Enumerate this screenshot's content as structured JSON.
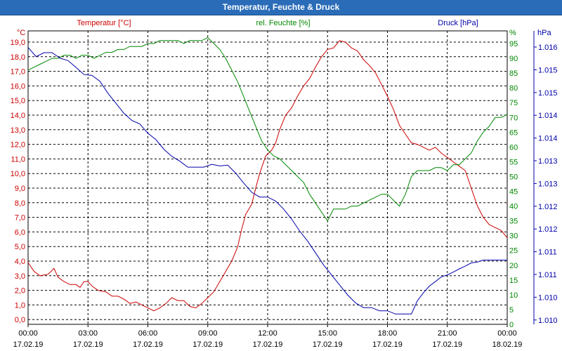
{
  "chart_data": {
    "type": "line",
    "title": "Temperatur, Feuchte & Druck",
    "x_ticks": [
      {
        "time": "00:00",
        "date": "17.02.19"
      },
      {
        "time": "03:00",
        "date": "17.02.19"
      },
      {
        "time": "06:00",
        "date": "17.02.19"
      },
      {
        "time": "09:00",
        "date": "17.02.19"
      },
      {
        "time": "12:00",
        "date": "17.02.19"
      },
      {
        "time": "15:00",
        "date": "17.02.19"
      },
      {
        "time": "18:00",
        "date": "17.02.19"
      },
      {
        "time": "21:00",
        "date": "17.02.19"
      },
      {
        "time": "00:00",
        "date": "18.02.19"
      }
    ],
    "xlim_hours": [
      0,
      24
    ],
    "axes": {
      "temperature": {
        "label": "Temperatur [°C]",
        "unit": "°C",
        "ylim": [
          -0.5,
          20.5
        ],
        "ticks": [
          "0,0",
          "1,0",
          "2,0",
          "3,0",
          "4,0",
          "5,0",
          "6,0",
          "7,0",
          "8,0",
          "9,0",
          "10,0",
          "11,0",
          "12,0",
          "13,0",
          "14,0",
          "15,0",
          "16,0",
          "17,0",
          "18,0",
          "19,0"
        ],
        "color": "#cc0000"
      },
      "humidity": {
        "label": "rel. Feuchte [%]",
        "unit": "%",
        "ylim": [
          0,
          100
        ],
        "ticks": [
          "0",
          "5",
          "10",
          "15",
          "20",
          "25",
          "30",
          "35",
          "40",
          "45",
          "50",
          "55",
          "60",
          "65",
          "70",
          "75",
          "80",
          "85",
          "90",
          "95"
        ],
        "color": "#008800"
      },
      "pressure": {
        "label": "Druck [hPa]",
        "unit": "hPa",
        "ticks": [
          "1.010",
          "1.010",
          "1.011",
          "1.011",
          "1.012",
          "1.012",
          "1.013",
          "1.013",
          "1.014",
          "1.014",
          "1.015",
          "1.015",
          "1.016"
        ],
        "color": "#0000aa"
      }
    },
    "series": [
      {
        "name": "Temperatur",
        "axis": "temperature",
        "color": "#cc0000",
        "points": [
          [
            0,
            3.9
          ],
          [
            0.3,
            3.3
          ],
          [
            0.6,
            3.0
          ],
          [
            1.0,
            3.1
          ],
          [
            1.3,
            3.5
          ],
          [
            1.5,
            2.9
          ],
          [
            1.8,
            2.6
          ],
          [
            2.1,
            2.4
          ],
          [
            2.4,
            2.4
          ],
          [
            2.6,
            2.2
          ],
          [
            2.8,
            2.6
          ],
          [
            3.0,
            2.6
          ],
          [
            3.2,
            2.3
          ],
          [
            3.5,
            2.0
          ],
          [
            3.9,
            1.9
          ],
          [
            4.2,
            1.6
          ],
          [
            4.5,
            1.6
          ],
          [
            4.8,
            1.4
          ],
          [
            5.1,
            1.1
          ],
          [
            5.4,
            1.2
          ],
          [
            5.7,
            1.0
          ],
          [
            6.0,
            0.8
          ],
          [
            6.3,
            0.6
          ],
          [
            6.6,
            0.8
          ],
          [
            6.9,
            1.1
          ],
          [
            7.2,
            1.5
          ],
          [
            7.5,
            1.3
          ],
          [
            7.8,
            1.3
          ],
          [
            8.1,
            0.9
          ],
          [
            8.4,
            0.8
          ],
          [
            8.7,
            1.1
          ],
          [
            9.0,
            1.5
          ],
          [
            9.3,
            1.9
          ],
          [
            9.6,
            2.6
          ],
          [
            9.9,
            3.3
          ],
          [
            10.2,
            4.0
          ],
          [
            10.5,
            5.0
          ],
          [
            10.7,
            6.2
          ],
          [
            10.9,
            7.2
          ],
          [
            11.2,
            7.9
          ],
          [
            11.4,
            9.0
          ],
          [
            11.6,
            10.0
          ],
          [
            11.9,
            11.2
          ],
          [
            12.2,
            11.6
          ],
          [
            12.4,
            12.1
          ],
          [
            12.6,
            13.0
          ],
          [
            12.9,
            14.0
          ],
          [
            13.2,
            14.5
          ],
          [
            13.5,
            15.3
          ],
          [
            13.8,
            16.0
          ],
          [
            14.1,
            16.5
          ],
          [
            14.4,
            17.3
          ],
          [
            14.7,
            18.0
          ],
          [
            15.0,
            18.5
          ],
          [
            15.3,
            18.6
          ],
          [
            15.6,
            19.1
          ],
          [
            15.9,
            19.0
          ],
          [
            16.2,
            18.6
          ],
          [
            16.5,
            18.4
          ],
          [
            16.8,
            17.8
          ],
          [
            17.1,
            17.4
          ],
          [
            17.4,
            16.9
          ],
          [
            17.7,
            16.1
          ],
          [
            18.0,
            15.3
          ],
          [
            18.3,
            14.4
          ],
          [
            18.6,
            13.3
          ],
          [
            18.9,
            12.7
          ],
          [
            19.2,
            12.1
          ],
          [
            19.5,
            12.0
          ],
          [
            19.8,
            11.8
          ],
          [
            20.1,
            11.6
          ],
          [
            20.4,
            11.8
          ],
          [
            20.7,
            11.4
          ],
          [
            21.0,
            11.1
          ],
          [
            21.3,
            10.8
          ],
          [
            21.6,
            10.5
          ],
          [
            21.9,
            10.2
          ],
          [
            22.2,
            9.0
          ],
          [
            22.5,
            7.8
          ],
          [
            22.8,
            7.0
          ],
          [
            23.1,
            6.5
          ],
          [
            23.4,
            6.3
          ],
          [
            23.7,
            6.1
          ],
          [
            24.0,
            5.6
          ]
        ]
      },
      {
        "name": "rel. Feuchte",
        "axis": "humidity",
        "color": "#008800",
        "points": [
          [
            0,
            86
          ],
          [
            0.3,
            87
          ],
          [
            0.6,
            88
          ],
          [
            0.9,
            89
          ],
          [
            1.2,
            90
          ],
          [
            1.5,
            90
          ],
          [
            1.8,
            91
          ],
          [
            2.1,
            91
          ],
          [
            2.4,
            90
          ],
          [
            2.7,
            91
          ],
          [
            3.0,
            91
          ],
          [
            3.3,
            90
          ],
          [
            3.6,
            91
          ],
          [
            3.9,
            92
          ],
          [
            4.2,
            92
          ],
          [
            4.5,
            93
          ],
          [
            4.8,
            93
          ],
          [
            5.1,
            94
          ],
          [
            5.4,
            94
          ],
          [
            5.7,
            94
          ],
          [
            6.0,
            95
          ],
          [
            6.3,
            95
          ],
          [
            6.6,
            96
          ],
          [
            6.9,
            96
          ],
          [
            7.2,
            96
          ],
          [
            7.5,
            96
          ],
          [
            7.8,
            95
          ],
          [
            8.1,
            96
          ],
          [
            8.4,
            96
          ],
          [
            8.7,
            96
          ],
          [
            9.0,
            97
          ],
          [
            9.3,
            95
          ],
          [
            9.6,
            93
          ],
          [
            9.9,
            90
          ],
          [
            10.2,
            86
          ],
          [
            10.5,
            82
          ],
          [
            10.8,
            77
          ],
          [
            11.1,
            72
          ],
          [
            11.4,
            67
          ],
          [
            11.7,
            62
          ],
          [
            12.0,
            59
          ],
          [
            12.3,
            57
          ],
          [
            12.6,
            56
          ],
          [
            12.9,
            54
          ],
          [
            13.2,
            52
          ],
          [
            13.5,
            50
          ],
          [
            13.8,
            48
          ],
          [
            14.1,
            44
          ],
          [
            14.4,
            41
          ],
          [
            14.7,
            38
          ],
          [
            15.0,
            35
          ],
          [
            15.3,
            39
          ],
          [
            15.6,
            39
          ],
          [
            15.9,
            39
          ],
          [
            16.2,
            40
          ],
          [
            16.5,
            40
          ],
          [
            16.8,
            41
          ],
          [
            17.1,
            42
          ],
          [
            17.4,
            43
          ],
          [
            17.7,
            44
          ],
          [
            18.0,
            44
          ],
          [
            18.3,
            42
          ],
          [
            18.6,
            40
          ],
          [
            18.9,
            44
          ],
          [
            19.2,
            50
          ],
          [
            19.5,
            52
          ],
          [
            19.8,
            52
          ],
          [
            20.1,
            52
          ],
          [
            20.4,
            53
          ],
          [
            20.7,
            53
          ],
          [
            21.0,
            52
          ],
          [
            21.3,
            54
          ],
          [
            21.6,
            54
          ],
          [
            21.9,
            56
          ],
          [
            22.2,
            58
          ],
          [
            22.5,
            62
          ],
          [
            22.8,
            65
          ],
          [
            23.1,
            67
          ],
          [
            23.4,
            70
          ],
          [
            23.7,
            70
          ],
          [
            24.0,
            71
          ]
        ]
      },
      {
        "name": "Druck",
        "axis": "pressure",
        "color": "#0000aa",
        "points": [
          [
            0,
            1.01645
          ],
          [
            0.4,
            1.01622
          ],
          [
            0.8,
            1.01632
          ],
          [
            1.2,
            1.01632
          ],
          [
            1.6,
            1.01618
          ],
          [
            2.0,
            1.01612
          ],
          [
            2.4,
            1.01595
          ],
          [
            2.8,
            1.01577
          ],
          [
            3.2,
            1.01575
          ],
          [
            3.6,
            1.0156
          ],
          [
            4.0,
            1.0153
          ],
          [
            4.4,
            1.01505
          ],
          [
            4.8,
            1.0148
          ],
          [
            5.2,
            1.01462
          ],
          [
            5.6,
            1.01453
          ],
          [
            6.0,
            1.0143
          ],
          [
            6.4,
            1.01414
          ],
          [
            6.8,
            1.0139
          ],
          [
            7.2,
            1.01372
          ],
          [
            7.6,
            1.0136
          ],
          [
            8.0,
            1.01345
          ],
          [
            8.4,
            1.01345
          ],
          [
            8.8,
            1.01345
          ],
          [
            9.2,
            1.01352
          ],
          [
            9.6,
            1.01348
          ],
          [
            10.0,
            1.0135
          ],
          [
            10.4,
            1.0133
          ],
          [
            10.8,
            1.01305
          ],
          [
            11.2,
            1.01282
          ],
          [
            11.6,
            1.0127
          ],
          [
            12.0,
            1.0127
          ],
          [
            12.4,
            1.0126
          ],
          [
            12.8,
            1.0124
          ],
          [
            13.2,
            1.01215
          ],
          [
            13.6,
            1.01185
          ],
          [
            14.0,
            1.0116
          ],
          [
            14.4,
            1.0113
          ],
          [
            14.8,
            1.011
          ],
          [
            15.2,
            1.01075
          ],
          [
            15.6,
            1.0105
          ],
          [
            16.0,
            1.01025
          ],
          [
            16.4,
            1.01005
          ],
          [
            16.8,
            1.00993
          ],
          [
            17.2,
            1.00993
          ],
          [
            17.6,
            1.00985
          ],
          [
            18.0,
            1.00985
          ],
          [
            18.4,
            1.00977
          ],
          [
            18.8,
            1.00977
          ],
          [
            19.2,
            1.00977
          ],
          [
            19.5,
            1.0101
          ],
          [
            19.8,
            1.0103
          ],
          [
            20.1,
            1.01047
          ],
          [
            20.4,
            1.01058
          ],
          [
            20.7,
            1.0107
          ],
          [
            21.0,
            1.01075
          ],
          [
            21.3,
            1.01082
          ],
          [
            21.6,
            1.0109
          ],
          [
            21.9,
            1.01097
          ],
          [
            22.2,
            1.01105
          ],
          [
            22.5,
            1.01107
          ],
          [
            22.8,
            1.01112
          ],
          [
            23.1,
            1.01112
          ],
          [
            23.4,
            1.01112
          ],
          [
            23.7,
            1.01112
          ],
          [
            24.0,
            1.01112
          ]
        ]
      }
    ]
  }
}
